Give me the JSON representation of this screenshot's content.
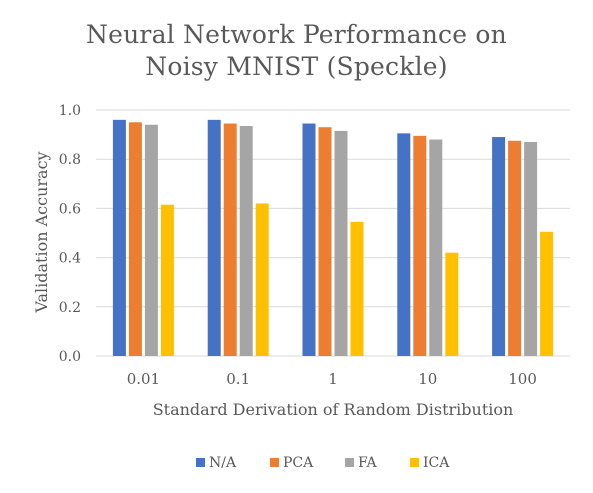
{
  "chart_data": {
    "type": "bar",
    "title_lines": [
      "Neural Network Performance on",
      "Noisy MNIST (Speckle)"
    ],
    "xlabel": "Standard Derivation of Random Distribution",
    "ylabel": "Validation Accuracy",
    "categories": [
      "0.01",
      "0.1",
      "1",
      "10",
      "100"
    ],
    "ylim": [
      0,
      1.0
    ],
    "yticks": [
      "0.0",
      "0.2",
      "0.4",
      "0.6",
      "0.8",
      "1.0"
    ],
    "grid": true,
    "legend_position": "bottom",
    "series": [
      {
        "name": "N/A",
        "color": "#4472C4",
        "values": [
          0.96,
          0.96,
          0.945,
          0.905,
          0.89
        ]
      },
      {
        "name": "PCA",
        "color": "#ED7D31",
        "values": [
          0.95,
          0.945,
          0.93,
          0.895,
          0.875
        ]
      },
      {
        "name": "FA",
        "color": "#A5A5A5",
        "values": [
          0.94,
          0.935,
          0.915,
          0.88,
          0.87
        ]
      },
      {
        "name": "ICA",
        "color": "#FFC000",
        "values": [
          0.615,
          0.62,
          0.545,
          0.42,
          0.505
        ]
      }
    ]
  }
}
